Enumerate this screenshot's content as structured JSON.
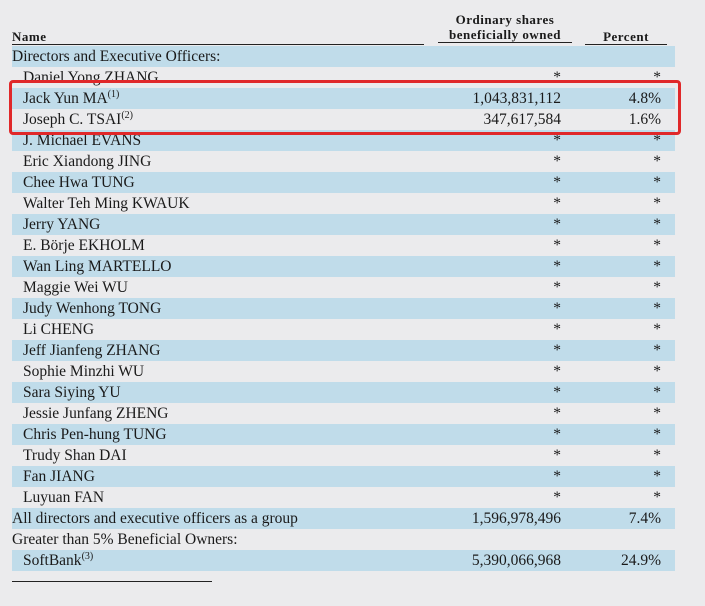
{
  "headers": {
    "name": "Name",
    "shares_line1": "Ordinary shares",
    "shares_line2": "beneficially owned",
    "percent": "Percent"
  },
  "rows": [
    {
      "name": "Directors and Executive Officers:",
      "shares": "",
      "percent": "",
      "indent": false,
      "note": ""
    },
    {
      "name": "Daniel Yong ZHANG",
      "shares": "*",
      "percent": "*",
      "indent": true,
      "note": ""
    },
    {
      "name": "Jack Yun MA",
      "shares": "1,043,831,112",
      "percent": "4.8%",
      "indent": true,
      "note": "(1)"
    },
    {
      "name": "Joseph C. TSAI",
      "shares": "347,617,584",
      "percent": "1.6%",
      "indent": true,
      "note": "(2)"
    },
    {
      "name": "J. Michael EVANS",
      "shares": "*",
      "percent": "*",
      "indent": true,
      "note": ""
    },
    {
      "name": "Eric Xiandong JING",
      "shares": "*",
      "percent": "*",
      "indent": true,
      "note": ""
    },
    {
      "name": "Chee Hwa TUNG",
      "shares": "*",
      "percent": "*",
      "indent": true,
      "note": ""
    },
    {
      "name": "Walter Teh Ming KWAUK",
      "shares": "*",
      "percent": "*",
      "indent": true,
      "note": ""
    },
    {
      "name": "Jerry YANG",
      "shares": "*",
      "percent": "*",
      "indent": true,
      "note": ""
    },
    {
      "name": "E. Börje EKHOLM",
      "shares": "*",
      "percent": "*",
      "indent": true,
      "note": ""
    },
    {
      "name": "Wan Ling MARTELLO",
      "shares": "*",
      "percent": "*",
      "indent": true,
      "note": ""
    },
    {
      "name": "Maggie Wei WU",
      "shares": "*",
      "percent": "*",
      "indent": true,
      "note": ""
    },
    {
      "name": "Judy Wenhong TONG",
      "shares": "*",
      "percent": "*",
      "indent": true,
      "note": ""
    },
    {
      "name": "Li CHENG",
      "shares": "*",
      "percent": "*",
      "indent": true,
      "note": ""
    },
    {
      "name": "Jeff Jianfeng ZHANG",
      "shares": "*",
      "percent": "*",
      "indent": true,
      "note": ""
    },
    {
      "name": "Sophie Minzhi WU",
      "shares": "*",
      "percent": "*",
      "indent": true,
      "note": ""
    },
    {
      "name": "Sara Siying YU",
      "shares": "*",
      "percent": "*",
      "indent": true,
      "note": ""
    },
    {
      "name": "Jessie Junfang ZHENG",
      "shares": "*",
      "percent": "*",
      "indent": true,
      "note": ""
    },
    {
      "name": "Chris Pen-hung TUNG",
      "shares": "*",
      "percent": "*",
      "indent": true,
      "note": ""
    },
    {
      "name": "Trudy Shan DAI",
      "shares": "*",
      "percent": "*",
      "indent": true,
      "note": ""
    },
    {
      "name": "Fan JIANG",
      "shares": "*",
      "percent": "*",
      "indent": true,
      "note": ""
    },
    {
      "name": "Luyuan FAN",
      "shares": "*",
      "percent": "*",
      "indent": true,
      "note": ""
    },
    {
      "name": "All directors and executive officers as a group",
      "shares": "1,596,978,496",
      "percent": "7.4%",
      "indent": false,
      "note": ""
    },
    {
      "name": "Greater than 5% Beneficial Owners:",
      "shares": "",
      "percent": "",
      "indent": false,
      "note": ""
    },
    {
      "name": "SoftBank",
      "shares": "5,390,066,968",
      "percent": "24.9%",
      "indent": true,
      "note": "(3)"
    }
  ],
  "highlight_color": "#e0282a"
}
